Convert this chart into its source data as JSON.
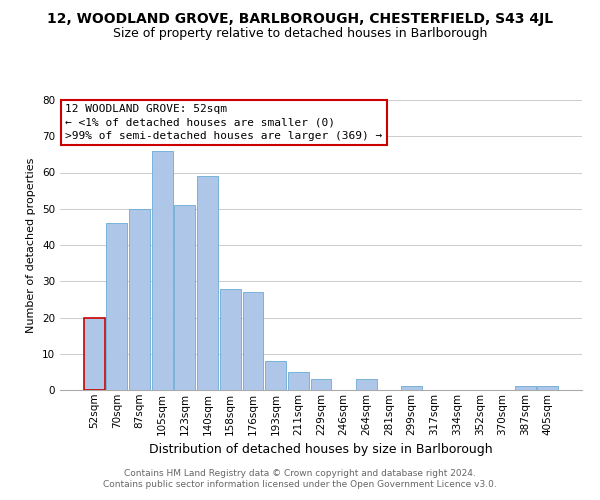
{
  "title_line1": "12, WOODLAND GROVE, BARLBOROUGH, CHESTERFIELD, S43 4JL",
  "title_line2": "Size of property relative to detached houses in Barlborough",
  "xlabel": "Distribution of detached houses by size in Barlborough",
  "ylabel": "Number of detached properties",
  "bar_labels": [
    "52sqm",
    "70sqm",
    "87sqm",
    "105sqm",
    "123sqm",
    "140sqm",
    "158sqm",
    "176sqm",
    "193sqm",
    "211sqm",
    "229sqm",
    "246sqm",
    "264sqm",
    "281sqm",
    "299sqm",
    "317sqm",
    "334sqm",
    "352sqm",
    "370sqm",
    "387sqm",
    "405sqm"
  ],
  "bar_values": [
    20,
    46,
    50,
    66,
    51,
    59,
    28,
    27,
    8,
    5,
    3,
    0,
    3,
    0,
    1,
    0,
    0,
    0,
    0,
    1,
    1
  ],
  "bar_color": "#aec6e8",
  "bar_edge_color": "#6aaad4",
  "highlight_bar_index": 0,
  "highlight_bar_edge_color": "#cc0000",
  "ylim": [
    0,
    80
  ],
  "yticks": [
    0,
    10,
    20,
    30,
    40,
    50,
    60,
    70,
    80
  ],
  "annotation_title": "12 WOODLAND GROVE: 52sqm",
  "annotation_line2": "← <1% of detached houses are smaller (0)",
  "annotation_line3": ">99% of semi-detached houses are larger (369) →",
  "annotation_box_color": "#ffffff",
  "annotation_box_edge_color": "#cc0000",
  "footnote_line1": "Contains HM Land Registry data © Crown copyright and database right 2024.",
  "footnote_line2": "Contains public sector information licensed under the Open Government Licence v3.0.",
  "background_color": "#ffffff",
  "plot_background_color": "#ffffff",
  "grid_color": "#cccccc",
  "title1_fontsize": 10,
  "title2_fontsize": 9,
  "ylabel_fontsize": 8,
  "xlabel_fontsize": 9,
  "tick_fontsize": 7.5,
  "annot_fontsize": 8,
  "footnote_fontsize": 6.5
}
